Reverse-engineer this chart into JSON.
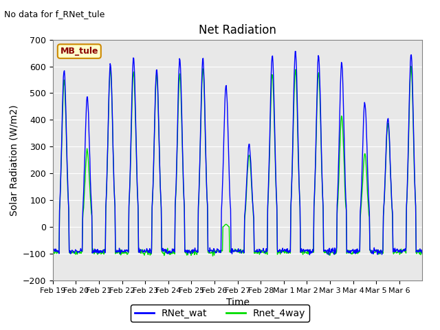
{
  "title": "Net Radiation",
  "xlabel": "Time",
  "ylabel": "Solar Radiation (W/m2)",
  "no_data_text": "No data for f_RNet_tule",
  "legend_label": "MB_tule",
  "series": [
    "RNet_wat",
    "Rnet_4way"
  ],
  "series_colors": [
    "blue",
    "#00dd00"
  ],
  "ylim": [
    -200,
    700
  ],
  "yticks": [
    -200,
    -100,
    0,
    100,
    200,
    300,
    400,
    500,
    600,
    700
  ],
  "background_color": "#e8e8e8",
  "grid_color": "white",
  "xtick_labels": [
    "Feb 19",
    "Feb 20",
    "Feb 21",
    "Feb 22",
    "Feb 23",
    "Feb 24",
    "Feb 25",
    "Feb 26",
    "Feb 27",
    "Feb 28",
    "Mar 1",
    "Mar 2",
    "Mar 3",
    "Mar 4",
    "Mar 5",
    "Mar 6"
  ],
  "n_days": 16,
  "day_peak_blue": [
    590,
    485,
    610,
    630,
    590,
    630,
    630,
    530,
    310,
    640,
    660,
    640,
    620,
    465,
    410,
    650
  ],
  "day_peak_green": [
    545,
    285,
    600,
    580,
    575,
    570,
    595,
    10,
    270,
    575,
    590,
    580,
    415,
    275,
    385,
    605
  ],
  "night_val_blue": -90,
  "night_val_green": -95
}
